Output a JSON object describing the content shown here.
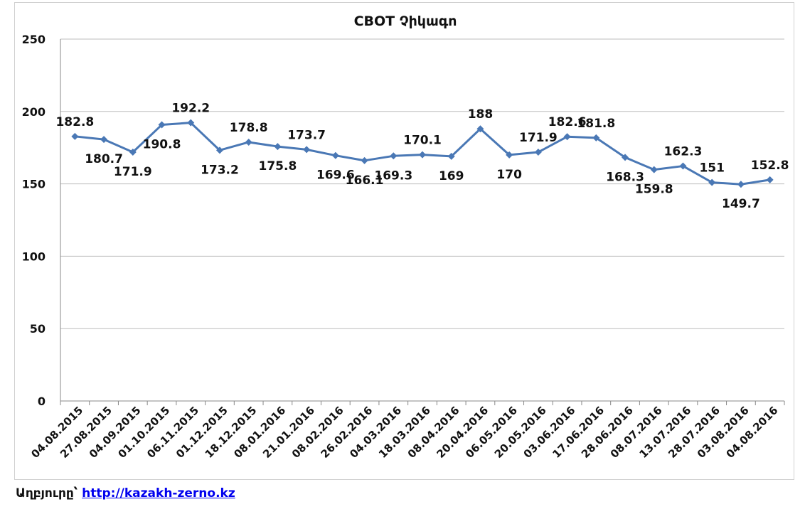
{
  "chart_data": {
    "type": "line",
    "title": "CBOT Չիկագո",
    "xlabel": "",
    "ylabel": "",
    "ylim": [
      0,
      250
    ],
    "yticks": [
      0,
      50,
      100,
      150,
      200,
      250
    ],
    "grid": true,
    "legend": "none",
    "color": "#4a78b5",
    "categories": [
      "04.08.2015",
      "27.08.2015",
      "04.09.2015",
      "01.10.2015",
      "06.11.2015",
      "01.12.2015",
      "18.12.2015",
      "08.01.2016",
      "21.01.2016",
      "08.02.2016",
      "26.02.2016",
      "04.03.2016",
      "18.03.2016",
      "08.04.2016",
      "20.04.2016",
      "06.05.2016",
      "20.05.2016",
      "03.06.2016",
      "17.06.2016",
      "28.06.2016",
      "08.07.2016",
      "13.07.2016",
      "28.07.2016",
      "03.08.2016",
      "04.08.2016"
    ],
    "series": [
      {
        "values": [
          182.8,
          180.7,
          171.9,
          190.8,
          192.2,
          173.2,
          178.8,
          175.8,
          173.7,
          169.6,
          166.1,
          169.3,
          170.1,
          169,
          188,
          170,
          171.9,
          182.6,
          181.8,
          168.3,
          159.8,
          162.3,
          151,
          149.7,
          152.8
        ],
        "labels": [
          "182.8",
          "180.7",
          "171.9",
          "190.8",
          "192.2",
          "173.2",
          "178.8",
          "175.8",
          "173.7",
          "169.6",
          "166.1",
          "169.3",
          "170.1",
          "169",
          "188",
          "170",
          "171.9",
          "182.6",
          "181.8",
          "168.3",
          "159.8",
          "162.3",
          "151",
          "149.7",
          "152.8"
        ]
      }
    ]
  },
  "source": {
    "label": "Աղբյուրը՝",
    "link": "http://kazakh-zerno.kz"
  }
}
